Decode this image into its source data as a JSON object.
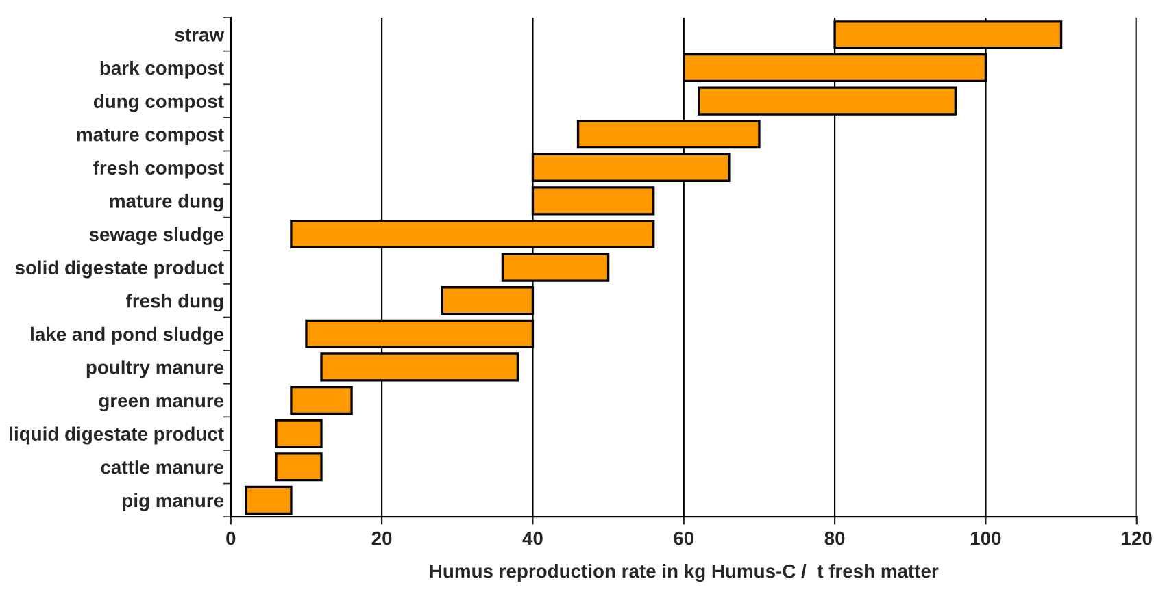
{
  "chart_data": {
    "type": "bar",
    "orientation": "horizontal",
    "xlabel": "Humus reproduction rate in kg Humus-C /  t fresh matter",
    "categories": [
      "straw",
      "bark compost",
      "dung compost",
      "mature compost",
      "fresh compost",
      "mature dung",
      "sewage sludge",
      "solid digestate product",
      "fresh dung",
      "lake and pond sludge",
      "poultry manure",
      "green manure",
      "liquid digestate product",
      "cattle manure",
      "pig manure"
    ],
    "base": [
      80,
      60,
      62,
      46,
      40,
      40,
      8,
      36,
      28,
      10,
      12,
      8,
      6,
      6,
      2
    ],
    "values": [
      30,
      40,
      34,
      24,
      26,
      16,
      48,
      14,
      12,
      30,
      26,
      8,
      6,
      6,
      6
    ],
    "color": "#ff9900",
    "xlim": [
      0,
      120
    ],
    "xticks": [
      0,
      20,
      40,
      60,
      80,
      100,
      120
    ],
    "grid": "x"
  }
}
